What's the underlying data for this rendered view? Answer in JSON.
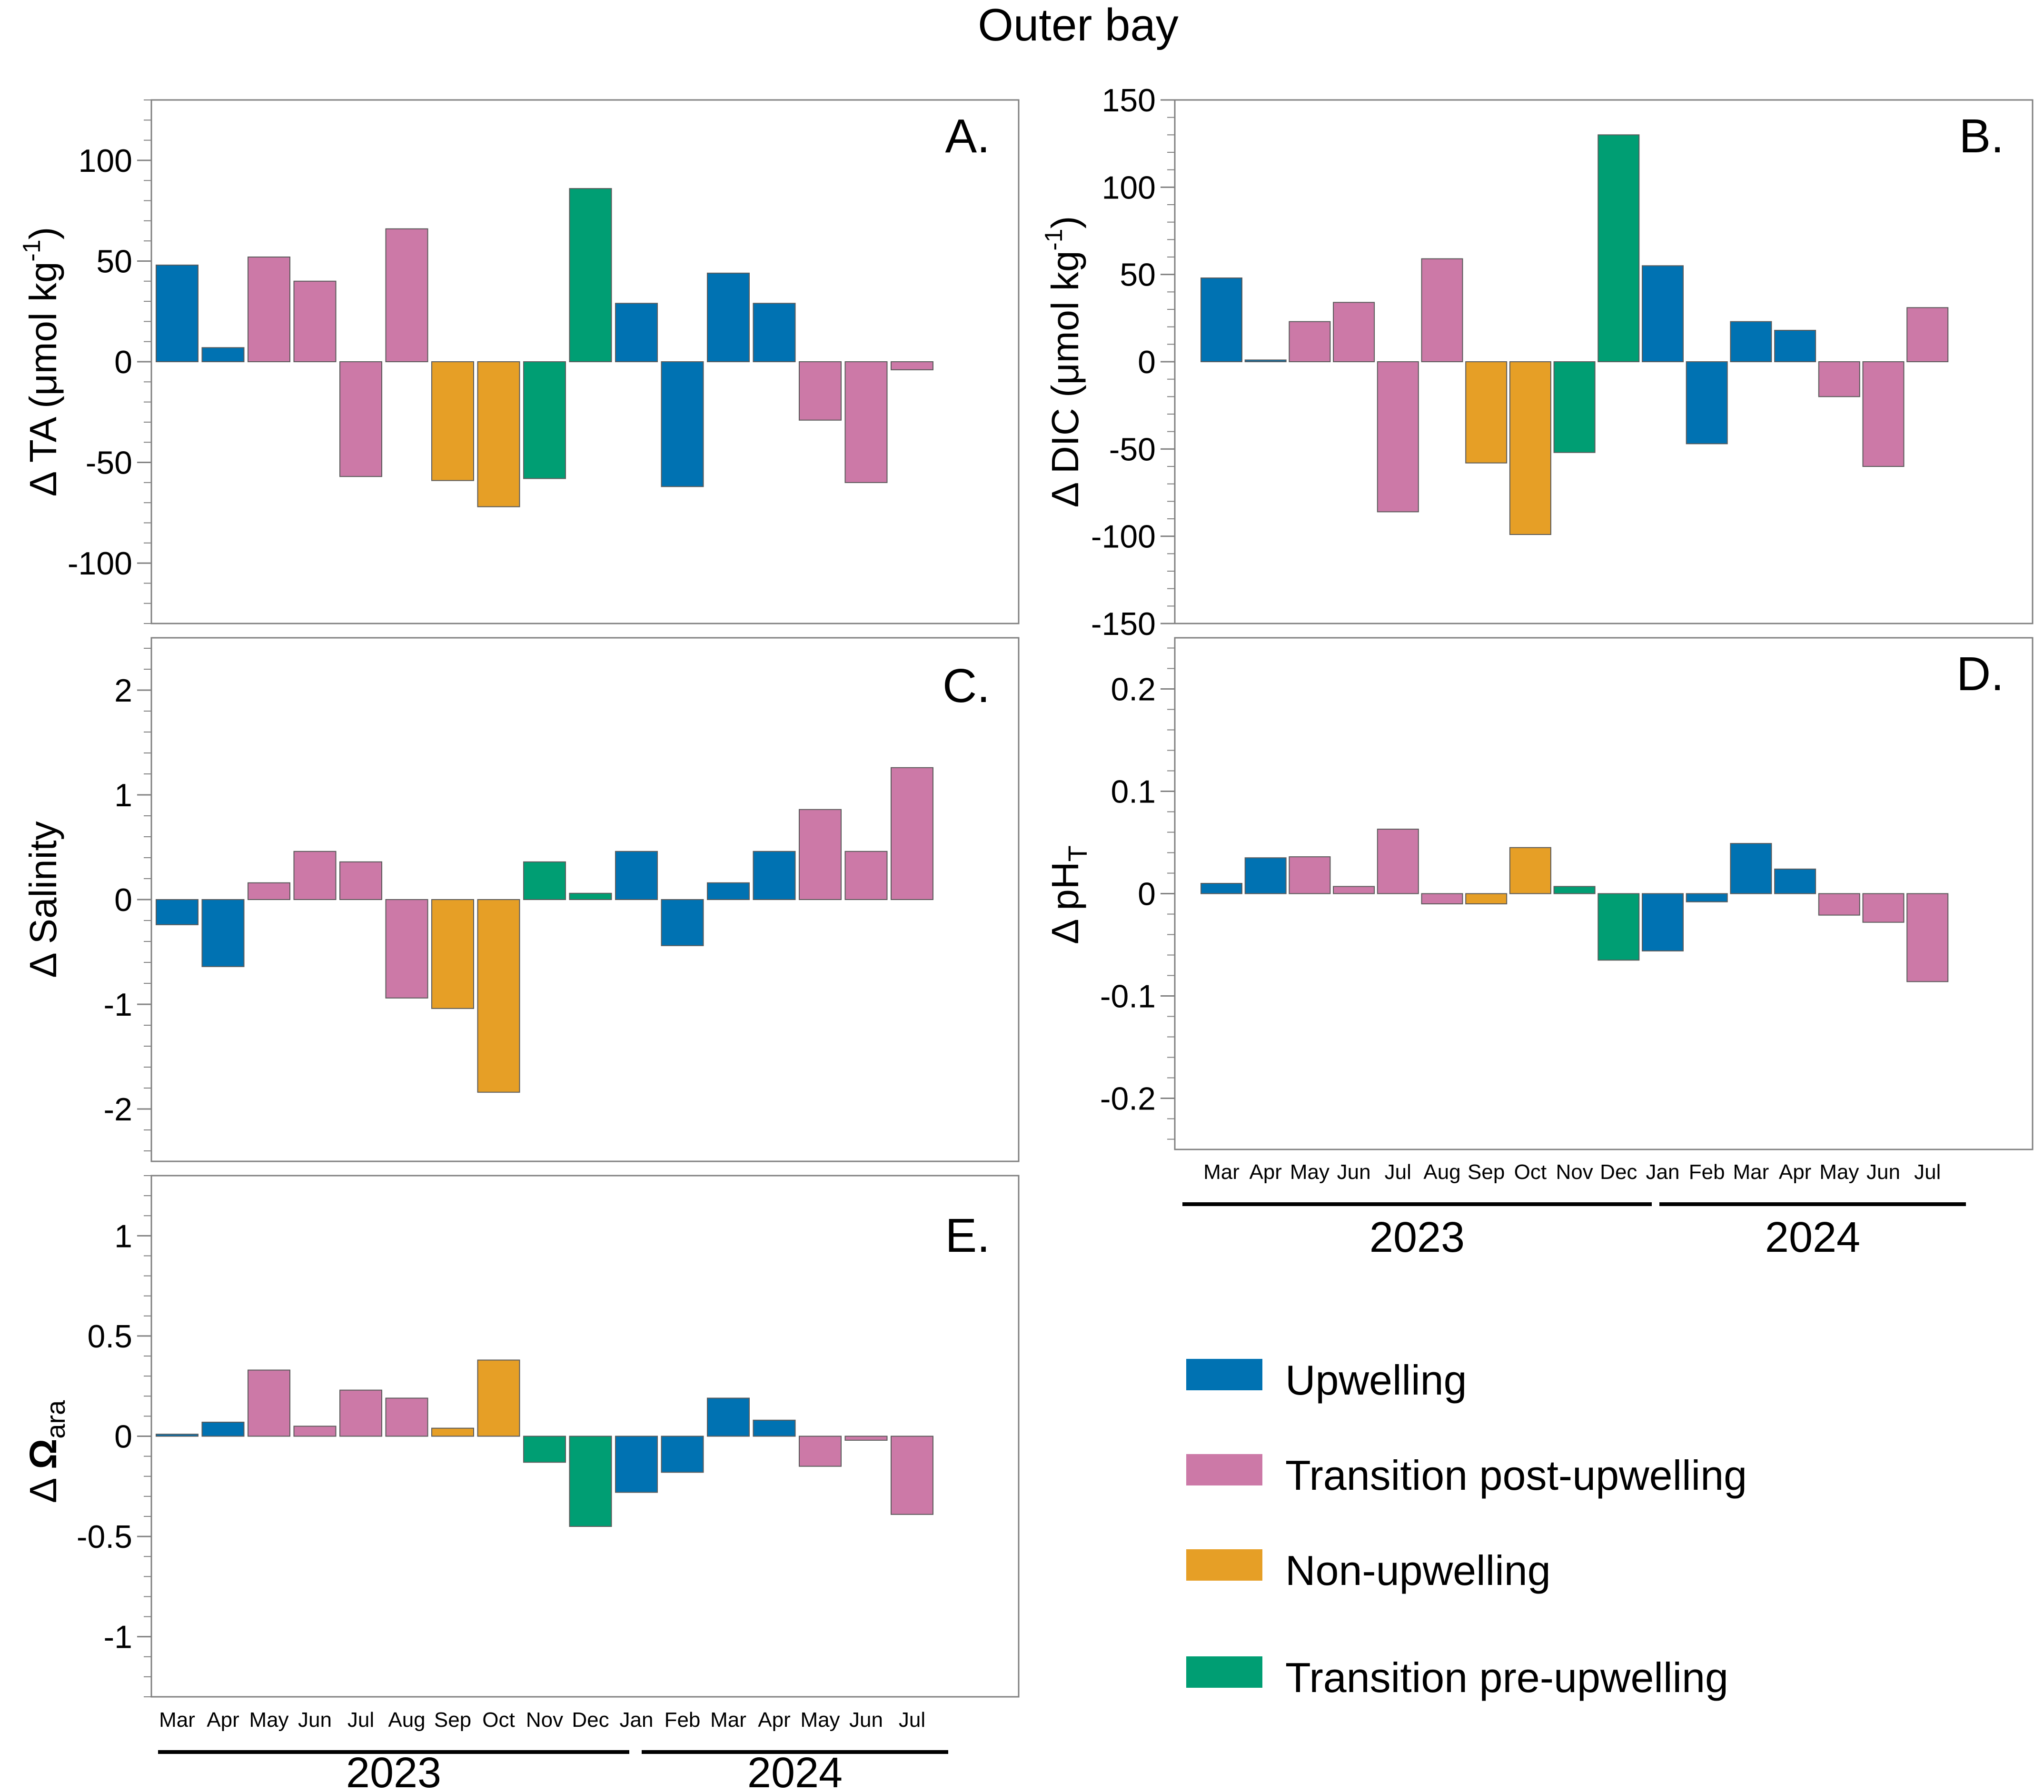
{
  "title": "Outer bay",
  "colors": {
    "upwelling": "#0072B2",
    "transition_post": "#CC79A7",
    "non_upwelling": "#E69F26",
    "transition_pre": "#009E73"
  },
  "legend": [
    {
      "key": "upwelling",
      "label": "Upwelling",
      "color": "#0072B2"
    },
    {
      "key": "transition_post",
      "label": "Transition post-upwelling",
      "color": "#CC79A7"
    },
    {
      "key": "non_upwelling",
      "label": "Non-upwelling",
      "color": "#E69F26"
    },
    {
      "key": "transition_pre",
      "label": "Transition pre-upwelling",
      "color": "#009E73"
    }
  ],
  "months": [
    "Mar",
    "Apr",
    "May",
    "Jun",
    "Jul",
    "Aug",
    "Sep",
    "Oct",
    "Nov",
    "Dec",
    "Jan",
    "Feb",
    "Mar",
    "Apr",
    "May",
    "Jun",
    "Jul"
  ],
  "years": [
    "2023",
    "2024"
  ],
  "chart_data": [
    {
      "type": "bar",
      "panel": "A.",
      "ylabel": "Δ TA (μmol kg-1)",
      "ylim": [
        -130,
        130
      ],
      "ticks": [
        100,
        50,
        0,
        -50,
        -100
      ],
      "tick_labels": [
        "100",
        "50",
        "0",
        "-50",
        "-100"
      ],
      "categories": [
        "Mar",
        "Apr",
        "May",
        "Jun",
        "Jul",
        "Aug",
        "Sep",
        "Oct",
        "Nov",
        "Dec",
        "Jan",
        "Feb",
        "Mar",
        "Apr",
        "May",
        "Jun",
        "Jul"
      ],
      "values": [
        48,
        7,
        52,
        40,
        -57,
        66,
        -59,
        -72,
        -58,
        86,
        29,
        -62,
        44,
        29,
        -29,
        -60,
        -4
      ],
      "classes": [
        "upwelling",
        "upwelling",
        "transition_post",
        "transition_post",
        "transition_post",
        "transition_post",
        "non_upwelling",
        "non_upwelling",
        "transition_pre",
        "transition_pre",
        "upwelling",
        "upwelling",
        "upwelling",
        "upwelling",
        "transition_post",
        "transition_post",
        "transition_post"
      ]
    },
    {
      "type": "bar",
      "panel": "B.",
      "ylabel": "Δ DIC (μmol kg-1)",
      "ylim": [
        -150,
        150
      ],
      "ticks": [
        150,
        100,
        50,
        0,
        -50,
        -100,
        -150
      ],
      "tick_labels": [
        "150",
        "100",
        "50",
        "0",
        "-50",
        "-100",
        "-150"
      ],
      "categories": [
        "Mar",
        "Apr",
        "May",
        "Jun",
        "Jul",
        "Aug",
        "Sep",
        "Oct",
        "Nov",
        "Dec",
        "Jan",
        "Feb",
        "Mar",
        "Apr",
        "May",
        "Jun",
        "Jul"
      ],
      "values": [
        48,
        1,
        23,
        34,
        -86,
        59,
        -58,
        -99,
        -52,
        130,
        55,
        -47,
        23,
        18,
        -20,
        -60,
        31
      ],
      "classes": [
        "upwelling",
        "upwelling",
        "transition_post",
        "transition_post",
        "transition_post",
        "transition_post",
        "non_upwelling",
        "non_upwelling",
        "transition_pre",
        "transition_pre",
        "upwelling",
        "upwelling",
        "upwelling",
        "upwelling",
        "transition_post",
        "transition_post",
        "transition_post"
      ]
    },
    {
      "type": "bar",
      "panel": "C.",
      "ylabel": "Δ Salinity",
      "ylim": [
        -2.5,
        2.5
      ],
      "ticks": [
        2,
        1,
        0,
        -1,
        -2
      ],
      "tick_labels": [
        "2",
        "1",
        "0",
        "-1",
        "-2"
      ],
      "categories": [
        "Mar",
        "Apr",
        "May",
        "Jun",
        "Jul",
        "Aug",
        "Sep",
        "Oct",
        "Nov",
        "Dec",
        "Jan",
        "Feb",
        "Mar",
        "Apr",
        "May",
        "Jun",
        "Jul"
      ],
      "values": [
        -0.24,
        -0.64,
        0.16,
        0.46,
        0.36,
        -0.94,
        -1.04,
        -1.84,
        0.36,
        0.06,
        0.46,
        -0.44,
        0.16,
        0.46,
        0.86,
        0.46,
        1.26
      ],
      "classes": [
        "upwelling",
        "upwelling",
        "transition_post",
        "transition_post",
        "transition_post",
        "transition_post",
        "non_upwelling",
        "non_upwelling",
        "transition_pre",
        "transition_pre",
        "upwelling",
        "upwelling",
        "upwelling",
        "upwelling",
        "transition_post",
        "transition_post",
        "transition_post"
      ]
    },
    {
      "type": "bar",
      "panel": "D.",
      "ylabel": "Δ pHT",
      "ylim": [
        -0.25,
        0.25
      ],
      "ticks": [
        0.2,
        0.1,
        0,
        -0.1,
        -0.2
      ],
      "tick_labels": [
        "0.2",
        "0.1",
        "0",
        "-0.1",
        "-0.2"
      ],
      "categories": [
        "Mar",
        "Apr",
        "May",
        "Jun",
        "Jul",
        "Aug",
        "Sep",
        "Oct",
        "Nov",
        "Dec",
        "Jan",
        "Feb",
        "Mar",
        "Apr",
        "May",
        "Jun",
        "Jul"
      ],
      "values": [
        0.01,
        0.035,
        0.036,
        0.007,
        0.063,
        -0.01,
        -0.01,
        0.045,
        0.007,
        -0.065,
        -0.056,
        -0.008,
        0.049,
        0.024,
        -0.021,
        -0.028,
        -0.086
      ],
      "classes": [
        "upwelling",
        "upwelling",
        "transition_post",
        "transition_post",
        "transition_post",
        "transition_post",
        "non_upwelling",
        "non_upwelling",
        "transition_pre",
        "transition_pre",
        "upwelling",
        "upwelling",
        "upwelling",
        "upwelling",
        "transition_post",
        "transition_post",
        "transition_post"
      ]
    },
    {
      "type": "bar",
      "panel": "E.",
      "ylabel": "Δ Ωara",
      "ylim": [
        -1.3,
        1.3
      ],
      "ticks": [
        1,
        0.5,
        0,
        -0.5,
        -1
      ],
      "tick_labels": [
        "1",
        "0.5",
        "0",
        "-0.5",
        "-1"
      ],
      "categories": [
        "Mar",
        "Apr",
        "May",
        "Jun",
        "Jul",
        "Aug",
        "Sep",
        "Oct",
        "Nov",
        "Dec",
        "Jan",
        "Feb",
        "Mar",
        "Apr",
        "May",
        "Jun",
        "Jul"
      ],
      "values": [
        0.01,
        0.07,
        0.33,
        0.05,
        0.23,
        0.19,
        0.04,
        0.38,
        -0.13,
        -0.45,
        -0.28,
        -0.18,
        0.19,
        0.08,
        -0.15,
        -0.02,
        -0.39
      ],
      "classes": [
        "upwelling",
        "upwelling",
        "transition_post",
        "transition_post",
        "transition_post",
        "transition_post",
        "non_upwelling",
        "non_upwelling",
        "transition_pre",
        "transition_pre",
        "upwelling",
        "upwelling",
        "upwelling",
        "upwelling",
        "transition_post",
        "transition_post",
        "transition_post"
      ]
    }
  ]
}
